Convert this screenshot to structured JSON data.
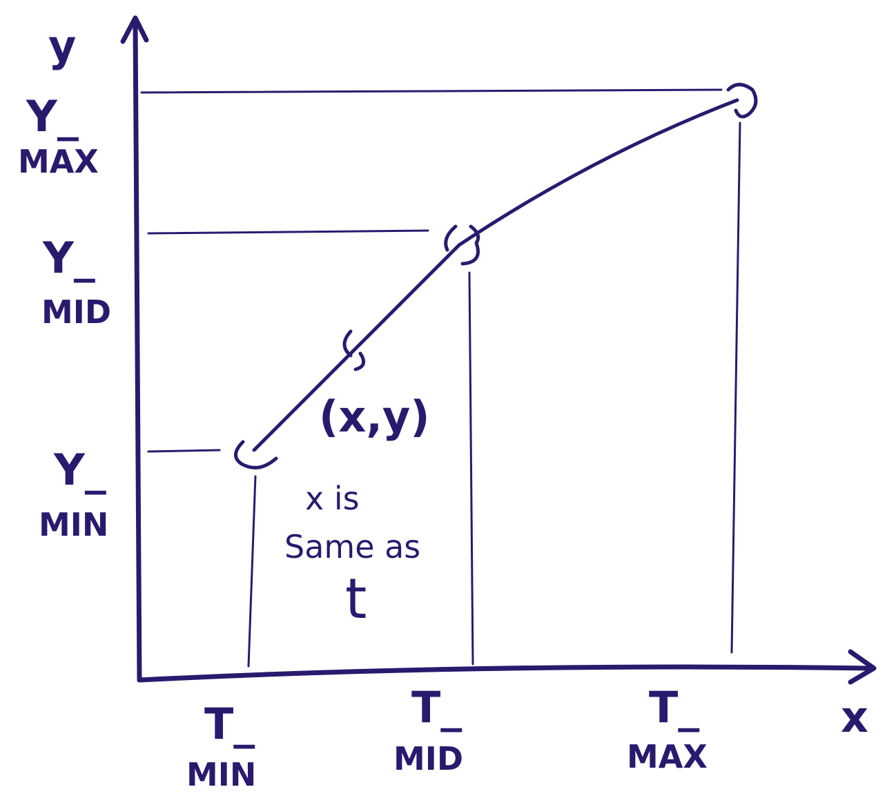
{
  "axes": {
    "x_label": "x",
    "y_label": "y"
  },
  "y_ticks": [
    {
      "line1": "Y_",
      "line2": "MAX"
    },
    {
      "line1": "Y_",
      "line2": "MID"
    },
    {
      "line1": "Y_",
      "line2": "MIN"
    }
  ],
  "x_ticks": [
    {
      "line1": "T_",
      "line2": "MIN"
    },
    {
      "line1": "T_",
      "line2": "MID"
    },
    {
      "line1": "T_",
      "line2": "MAX"
    }
  ],
  "point_label": "(x,y)",
  "note": {
    "line1": "x is",
    "line2": "Same as",
    "line3": "t"
  },
  "ink_color": "#2a1a6e"
}
